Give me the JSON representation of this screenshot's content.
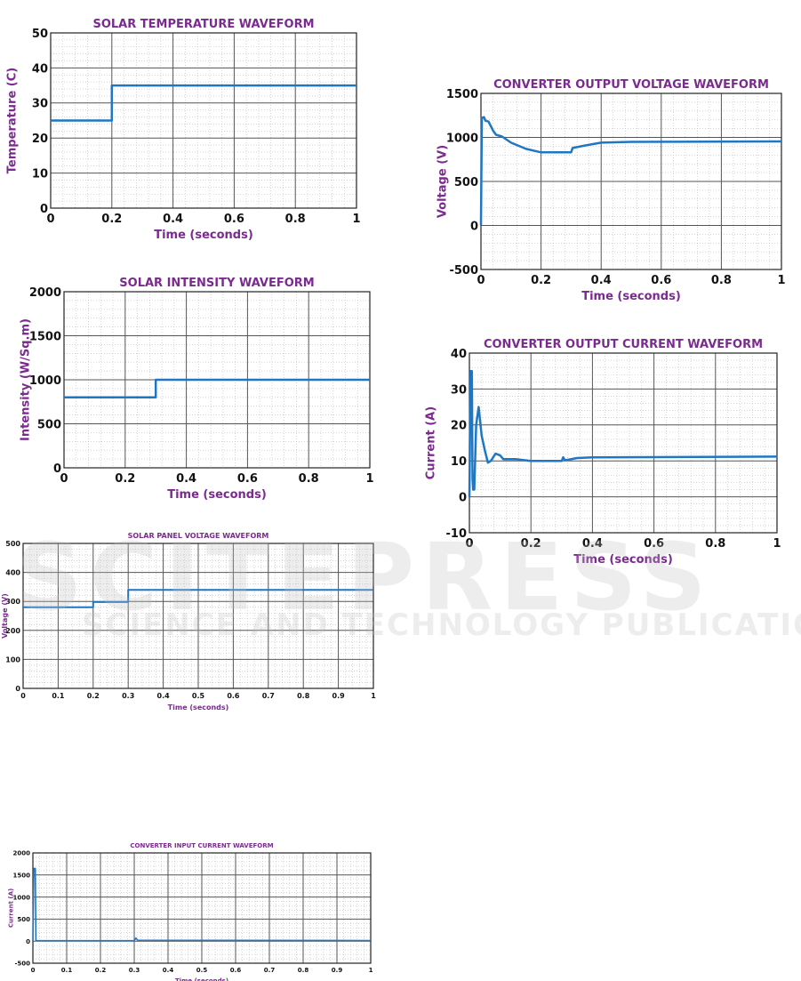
{
  "style": {
    "title_color": "#7b2a8f",
    "line_color": "#1f77c4",
    "grid_color": "#555555"
  },
  "watermark": {
    "main": "SCITEPRESS",
    "sub": "SCIENCE AND TECHNOLOGY PUBLICATIONS"
  },
  "chart_data": [
    {
      "id": "temp",
      "type": "line",
      "title": "SOLAR TEMPERATURE WAVEFORM",
      "xlabel": "Time (seconds)",
      "ylabel": "Temperature (C)",
      "xlim": [
        0,
        1
      ],
      "ylim": [
        0,
        50
      ],
      "xticks": [
        "0",
        "0.2",
        "0.4",
        "0.6",
        "0.8",
        "1"
      ],
      "yticks": [
        "0",
        "10",
        "20",
        "30",
        "40",
        "50"
      ],
      "grid": true,
      "series": [
        {
          "x": [
            0,
            0.2,
            0.2,
            1
          ],
          "y": [
            25,
            25,
            35,
            35
          ]
        }
      ]
    },
    {
      "id": "intensity",
      "type": "line",
      "title": "SOLAR INTENSITY WAVEFORM",
      "xlabel": "Time (seconds)",
      "ylabel": "Intensity (W/Sq.m)",
      "xlim": [
        0,
        1
      ],
      "ylim": [
        0,
        2000
      ],
      "xticks": [
        "0",
        "0.2",
        "0.4",
        "0.6",
        "0.8",
        "1"
      ],
      "yticks": [
        "0",
        "500",
        "1000",
        "1500",
        "2000"
      ],
      "grid": true,
      "series": [
        {
          "x": [
            0,
            0.3,
            0.3,
            1
          ],
          "y": [
            800,
            800,
            1000,
            1000
          ]
        }
      ]
    },
    {
      "id": "panel-voltage",
      "type": "line",
      "title": "SOLAR PANEL VOLTAGE WAVEFORM",
      "xlabel": "Time (seconds)",
      "ylabel": "Voltage (V)",
      "xlim": [
        0,
        1
      ],
      "ylim": [
        0,
        500
      ],
      "xticks": [
        "0",
        "0.1",
        "0.2",
        "0.3",
        "0.4",
        "0.5",
        "0.6",
        "0.7",
        "0.8",
        "0.9",
        "1"
      ],
      "yticks": [
        "0",
        "100",
        "200",
        "300",
        "400",
        "500"
      ],
      "grid": true,
      "series": [
        {
          "x": [
            0,
            0.2,
            0.2,
            0.3,
            0.3,
            1
          ],
          "y": [
            280,
            280,
            298,
            298,
            340,
            340
          ]
        }
      ]
    },
    {
      "id": "input-current",
      "type": "line",
      "title": "CONVERTER INPUT CURRENT WAVEFORM",
      "xlabel": "Time (seconds)",
      "ylabel": "Current (A)",
      "xlim": [
        0,
        1
      ],
      "ylim": [
        -500,
        2000
      ],
      "xticks": [
        "0",
        "0.1",
        "0.2",
        "0.3",
        "0.4",
        "0.5",
        "0.6",
        "0.7",
        "0.8",
        "0.9",
        "1"
      ],
      "yticks": [
        "-500",
        "0",
        "500",
        "1000",
        "1500",
        "2000"
      ],
      "grid": true,
      "series": [
        {
          "x": [
            0,
            0.003,
            0.007,
            0.009,
            0.3,
            0.305,
            0.31,
            1
          ],
          "y": [
            0,
            1650,
            1650,
            10,
            10,
            70,
            20,
            15
          ]
        }
      ]
    },
    {
      "id": "output-voltage",
      "type": "line",
      "title": "CONVERTER OUTPUT VOLTAGE WAVEFORM",
      "xlabel": "Time (seconds)",
      "ylabel": "Voltage (V)",
      "xlim": [
        0,
        1
      ],
      "ylim": [
        -500,
        1500
      ],
      "xticks": [
        "0",
        "0.2",
        "0.4",
        "0.6",
        "0.8",
        "1"
      ],
      "yticks": [
        "-500",
        "0",
        "500",
        "1000",
        "1500"
      ],
      "grid": true,
      "series": [
        {
          "x": [
            0,
            0.003,
            0.01,
            0.015,
            0.025,
            0.04,
            0.05,
            0.07,
            0.1,
            0.15,
            0.2,
            0.3,
            0.305,
            0.35,
            0.4,
            0.5,
            1
          ],
          "y": [
            0,
            1220,
            1230,
            1190,
            1180,
            1080,
            1030,
            1010,
            940,
            870,
            830,
            830,
            880,
            910,
            940,
            950,
            955
          ]
        }
      ]
    },
    {
      "id": "output-current",
      "type": "line",
      "title": "CONVERTER OUTPUT CURRENT WAVEFORM",
      "xlabel": "Time (seconds)",
      "ylabel": "Current (A)",
      "xlim": [
        0,
        1
      ],
      "ylim": [
        -10,
        40
      ],
      "xticks": [
        "0",
        "0.2",
        "0.4",
        "0.6",
        "0.8",
        "1"
      ],
      "yticks": [
        "-10",
        "0",
        "10",
        "20",
        "30",
        "40"
      ],
      "grid": true,
      "series": [
        {
          "x": [
            0,
            0.004,
            0.008,
            0.01,
            0.012,
            0.016,
            0.022,
            0.03,
            0.04,
            0.05,
            0.06,
            0.07,
            0.085,
            0.1,
            0.11,
            0.15,
            0.2,
            0.3,
            0.305,
            0.31,
            0.32,
            0.35,
            0.4,
            1
          ],
          "y": [
            0,
            35,
            35,
            5,
            2,
            2,
            20,
            25,
            17,
            13,
            9.5,
            10,
            12,
            11.5,
            10.5,
            10.5,
            10,
            10,
            11,
            10.2,
            10.3,
            10.8,
            11,
            11.2
          ]
        }
      ]
    }
  ]
}
